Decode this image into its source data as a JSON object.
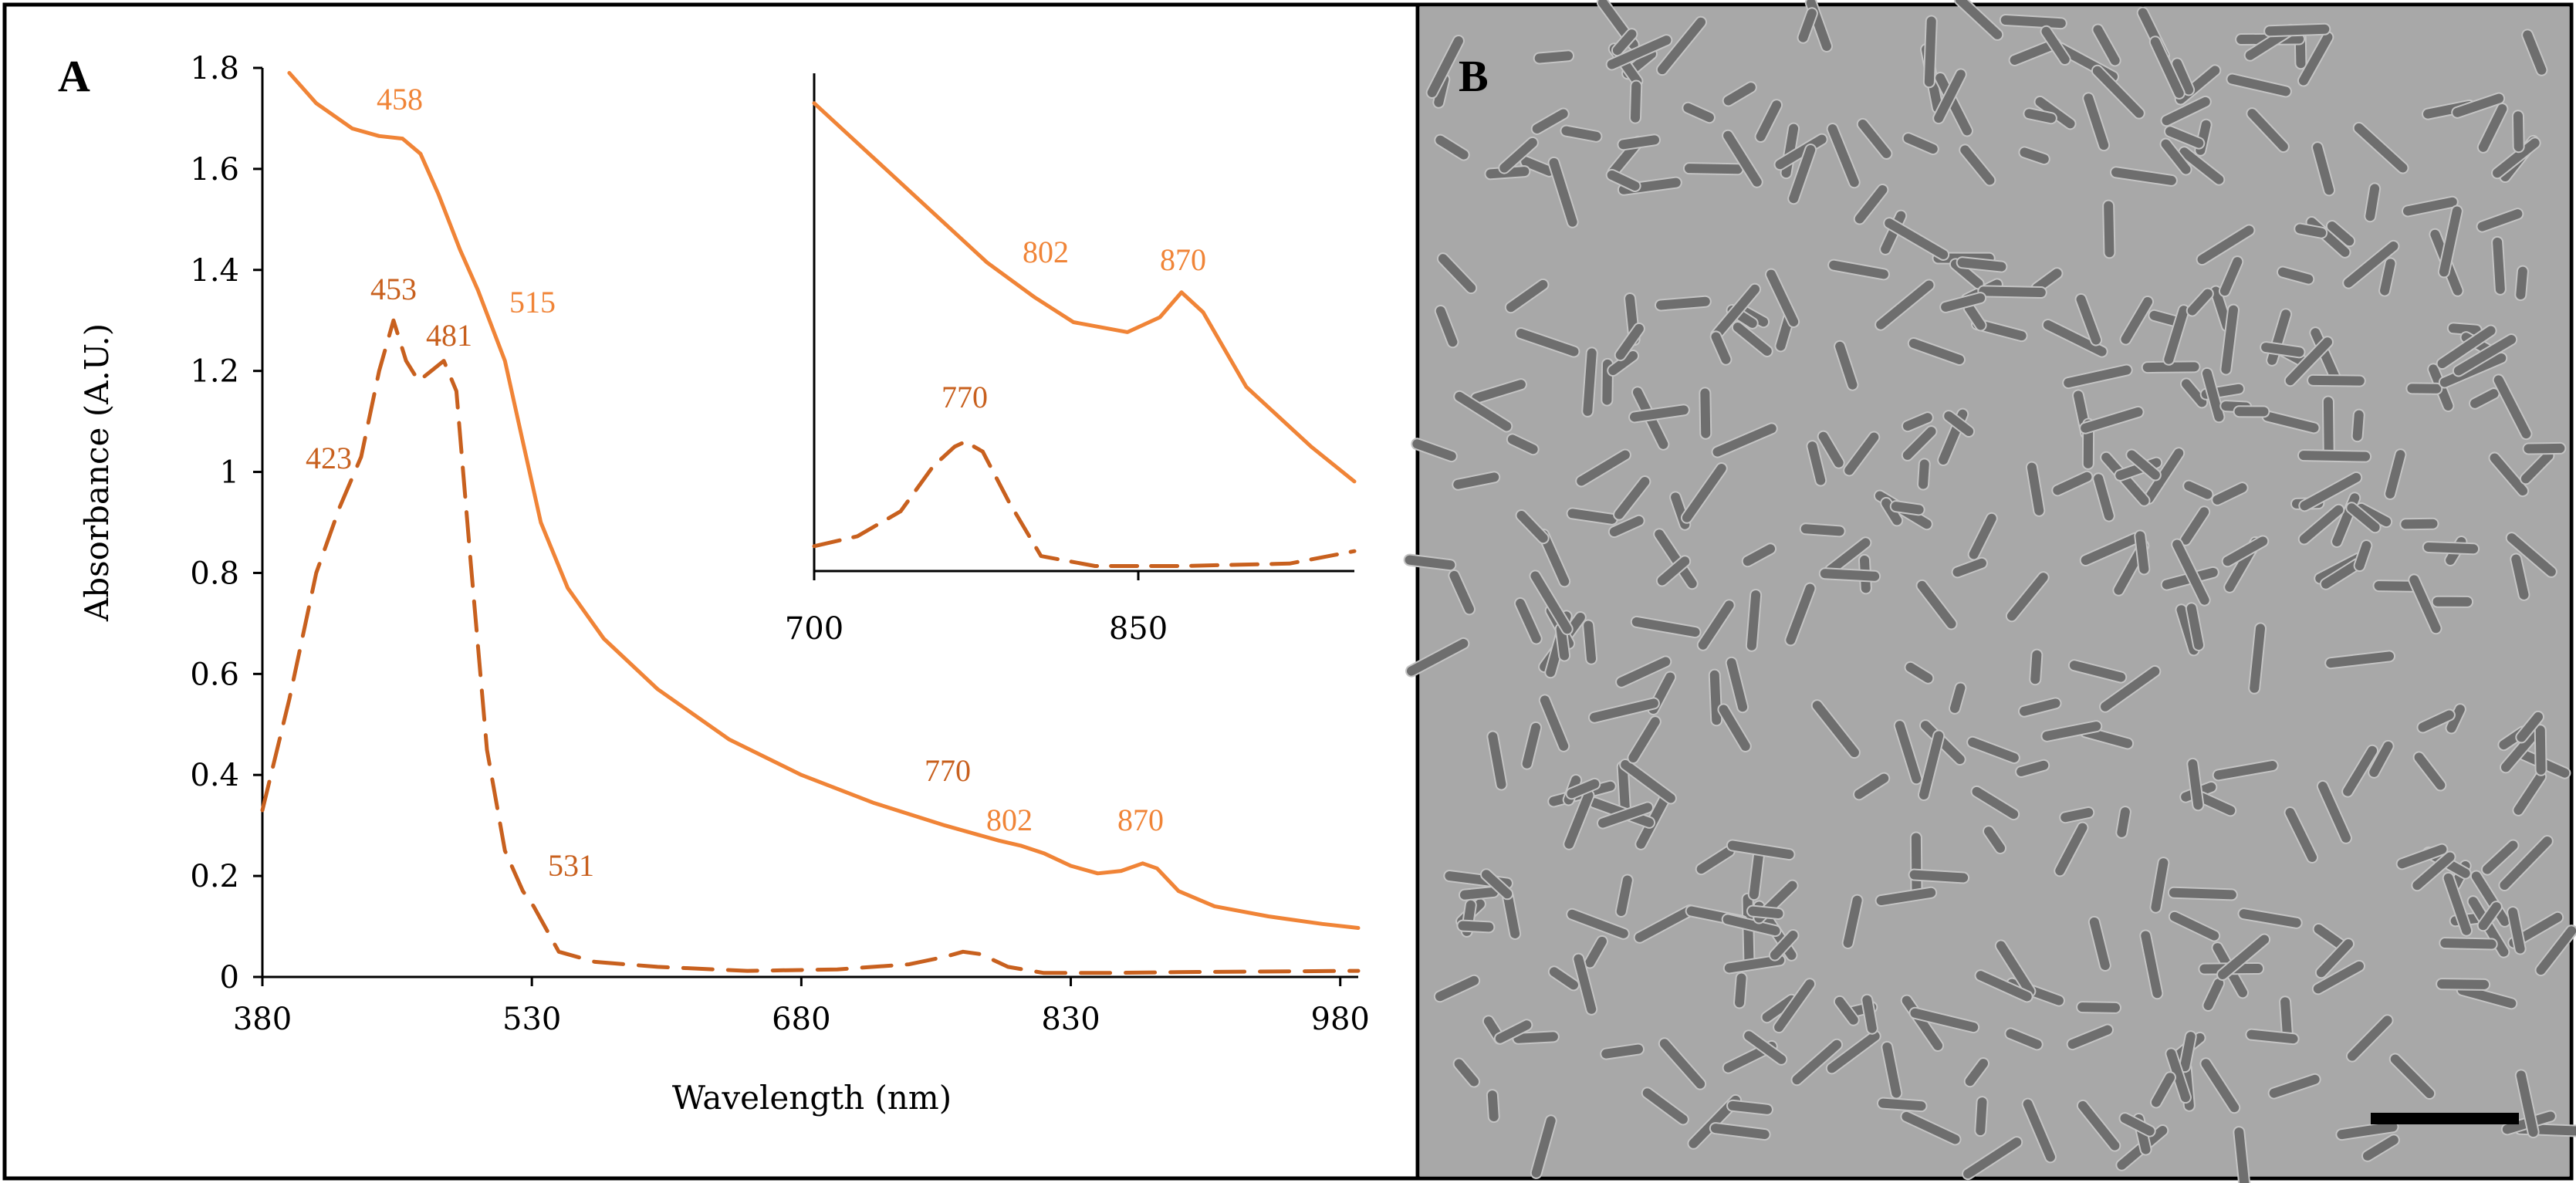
{
  "panels": {
    "a_label": "A",
    "b_label": "B"
  },
  "colors": {
    "solid_series": "#F08437",
    "dashed_series": "#C8601E",
    "peak_label_solid": "#F08437",
    "peak_label_dashed": "#C8601E",
    "micrograph_background": "#A8A8A8",
    "cell": "#6E6E6E",
    "scale_bar": "#000000"
  },
  "chart_data": [
    {
      "type": "line",
      "xlabel": "Wavelength (nm)",
      "ylabel": "Absorbance (A.U.)",
      "xlim": [
        380,
        990
      ],
      "ylim": [
        0,
        1.8
      ],
      "x_ticks": [
        380,
        530,
        680,
        830,
        980
      ],
      "y_ticks": [
        0,
        0.2,
        0.4,
        0.6,
        0.8,
        1,
        1.2,
        1.4,
        1.6,
        1.8
      ],
      "y_tick_labels": [
        "0",
        "0.2",
        "0.4",
        "0.6",
        "0.8",
        "1",
        "1.2",
        "1.4",
        "1.6",
        "1.8"
      ],
      "grid": false,
      "series": [
        {
          "style": "solid",
          "x": [
            395,
            410,
            430,
            445,
            458,
            468,
            478,
            490,
            500,
            515,
            525,
            535,
            550,
            570,
            600,
            640,
            680,
            720,
            760,
            790,
            802,
            815,
            830,
            845,
            858,
            870,
            878,
            890,
            910,
            940,
            970,
            990
          ],
          "y": [
            1.79,
            1.73,
            1.68,
            1.665,
            1.66,
            1.63,
            1.55,
            1.44,
            1.36,
            1.22,
            1.06,
            0.9,
            0.77,
            0.67,
            0.57,
            0.47,
            0.4,
            0.345,
            0.3,
            0.27,
            0.26,
            0.245,
            0.22,
            0.205,
            0.21,
            0.225,
            0.215,
            0.17,
            0.14,
            0.12,
            0.105,
            0.097
          ]
        },
        {
          "style": "dashed",
          "x": [
            380,
            395,
            410,
            423,
            435,
            445,
            453,
            460,
            467,
            474,
            481,
            488,
            496,
            505,
            515,
            525,
            531,
            545,
            565,
            600,
            650,
            700,
            740,
            760,
            770,
            780,
            795,
            815,
            850,
            900,
            990
          ],
          "y": [
            0.33,
            0.55,
            0.8,
            0.93,
            1.03,
            1.2,
            1.3,
            1.22,
            1.18,
            1.2,
            1.22,
            1.16,
            0.82,
            0.45,
            0.25,
            0.17,
            0.14,
            0.05,
            0.03,
            0.02,
            0.012,
            0.015,
            0.025,
            0.04,
            0.05,
            0.045,
            0.02,
            0.008,
            0.008,
            0.01,
            0.012
          ]
        }
      ],
      "annotations": [
        {
          "text": "458",
          "series": "solid"
        },
        {
          "text": "515",
          "series": "solid"
        },
        {
          "text": "802",
          "series": "solid"
        },
        {
          "text": "870",
          "series": "solid"
        },
        {
          "text": "453",
          "series": "dashed"
        },
        {
          "text": "481",
          "series": "dashed"
        },
        {
          "text": "423",
          "series": "dashed"
        },
        {
          "text": "531",
          "series": "dashed"
        },
        {
          "text": "770",
          "series": "dashed"
        }
      ]
    },
    {
      "type": "line",
      "xlim": [
        700,
        950
      ],
      "x_ticks": [
        700,
        850
      ],
      "ylim": [
        0,
        1
      ],
      "grid": false,
      "series": [
        {
          "style": "solid",
          "x": [
            700,
            720,
            750,
            780,
            802,
            820,
            845,
            860,
            870,
            880,
            900,
            930,
            950
          ],
          "y": [
            0.94,
            0.86,
            0.74,
            0.62,
            0.55,
            0.5,
            0.48,
            0.51,
            0.56,
            0.52,
            0.37,
            0.25,
            0.18
          ]
        },
        {
          "style": "dashed",
          "x": [
            700,
            720,
            740,
            755,
            765,
            770,
            778,
            790,
            805,
            830,
            870,
            920,
            950
          ],
          "y": [
            0.05,
            0.07,
            0.12,
            0.21,
            0.25,
            0.26,
            0.24,
            0.14,
            0.03,
            0.01,
            0.01,
            0.015,
            0.04
          ]
        }
      ],
      "annotations": [
        {
          "text": "802",
          "series": "solid"
        },
        {
          "text": "870",
          "series": "solid"
        },
        {
          "text": "770",
          "series": "dashed"
        }
      ]
    }
  ]
}
